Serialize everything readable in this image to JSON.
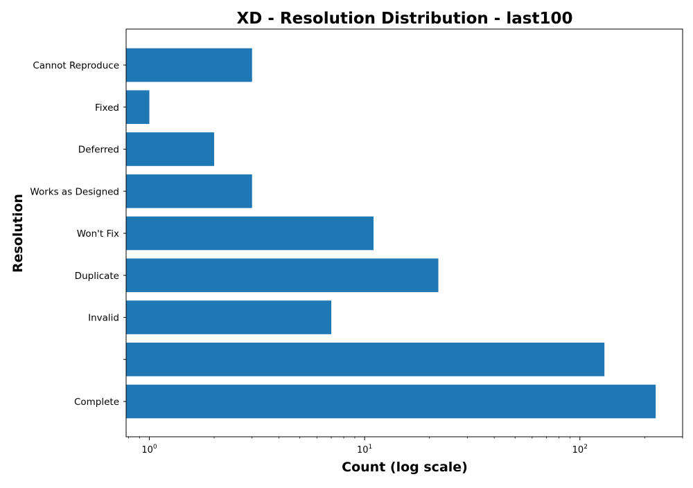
{
  "chart_data": {
    "type": "bar",
    "orientation": "horizontal",
    "title": "XD - Resolution Distribution - last100",
    "xlabel": "Count (log scale)",
    "ylabel": "Resolution",
    "x_scale": "log",
    "xlim": [
      0.78,
      300
    ],
    "x_ticks": [
      {
        "base": "10",
        "exp": "0",
        "value": 1
      },
      {
        "base": "10",
        "exp": "1",
        "value": 10
      },
      {
        "base": "10",
        "exp": "2",
        "value": 100
      }
    ],
    "categories": [
      "Complete",
      "",
      "Invalid",
      "Duplicate",
      "Won't Fix",
      "Works as Designed",
      "Deferred",
      "Fixed",
      "Cannot Reproduce"
    ],
    "values": [
      225,
      130,
      7,
      22,
      11,
      3,
      2,
      1,
      3
    ],
    "color": "#1f77b4",
    "grid": false,
    "legend": "none"
  }
}
